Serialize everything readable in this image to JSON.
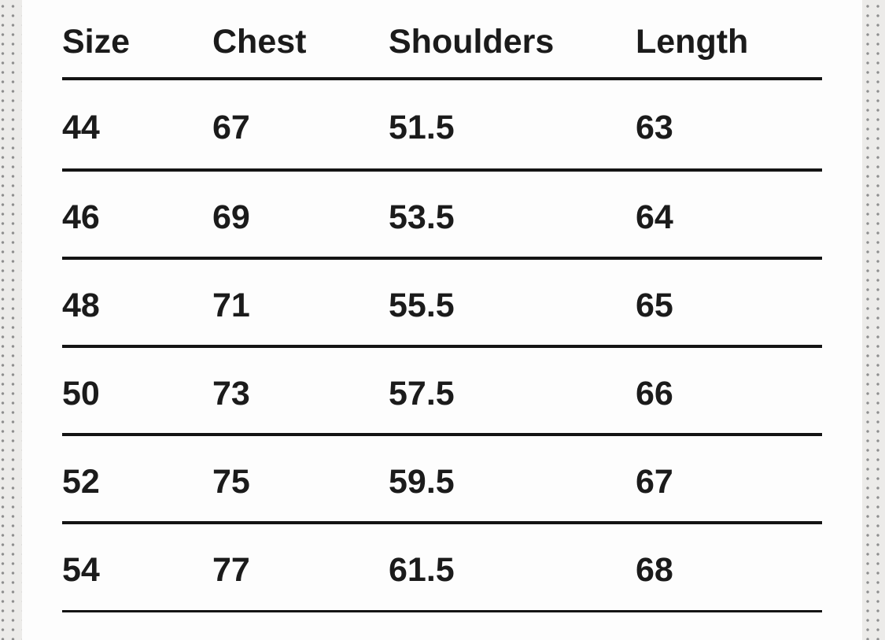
{
  "size_chart": {
    "columns": [
      "Size",
      "Chest",
      "Shoulders",
      "Length"
    ],
    "rows": [
      [
        "44",
        "67",
        "51.5",
        "63"
      ],
      [
        "46",
        "69",
        "53.5",
        "64"
      ],
      [
        "48",
        "71",
        "55.5",
        "65"
      ],
      [
        "50",
        "73",
        "57.5",
        "66"
      ],
      [
        "52",
        "75",
        "59.5",
        "67"
      ],
      [
        "54",
        "77",
        "61.5",
        "68"
      ]
    ]
  },
  "colors": {
    "page-bg": "#fdfdfd",
    "strip-bg": "#ecebe9",
    "dot": "#8e8e8e",
    "text": "#1b1b1b",
    "line": "#141414"
  }
}
